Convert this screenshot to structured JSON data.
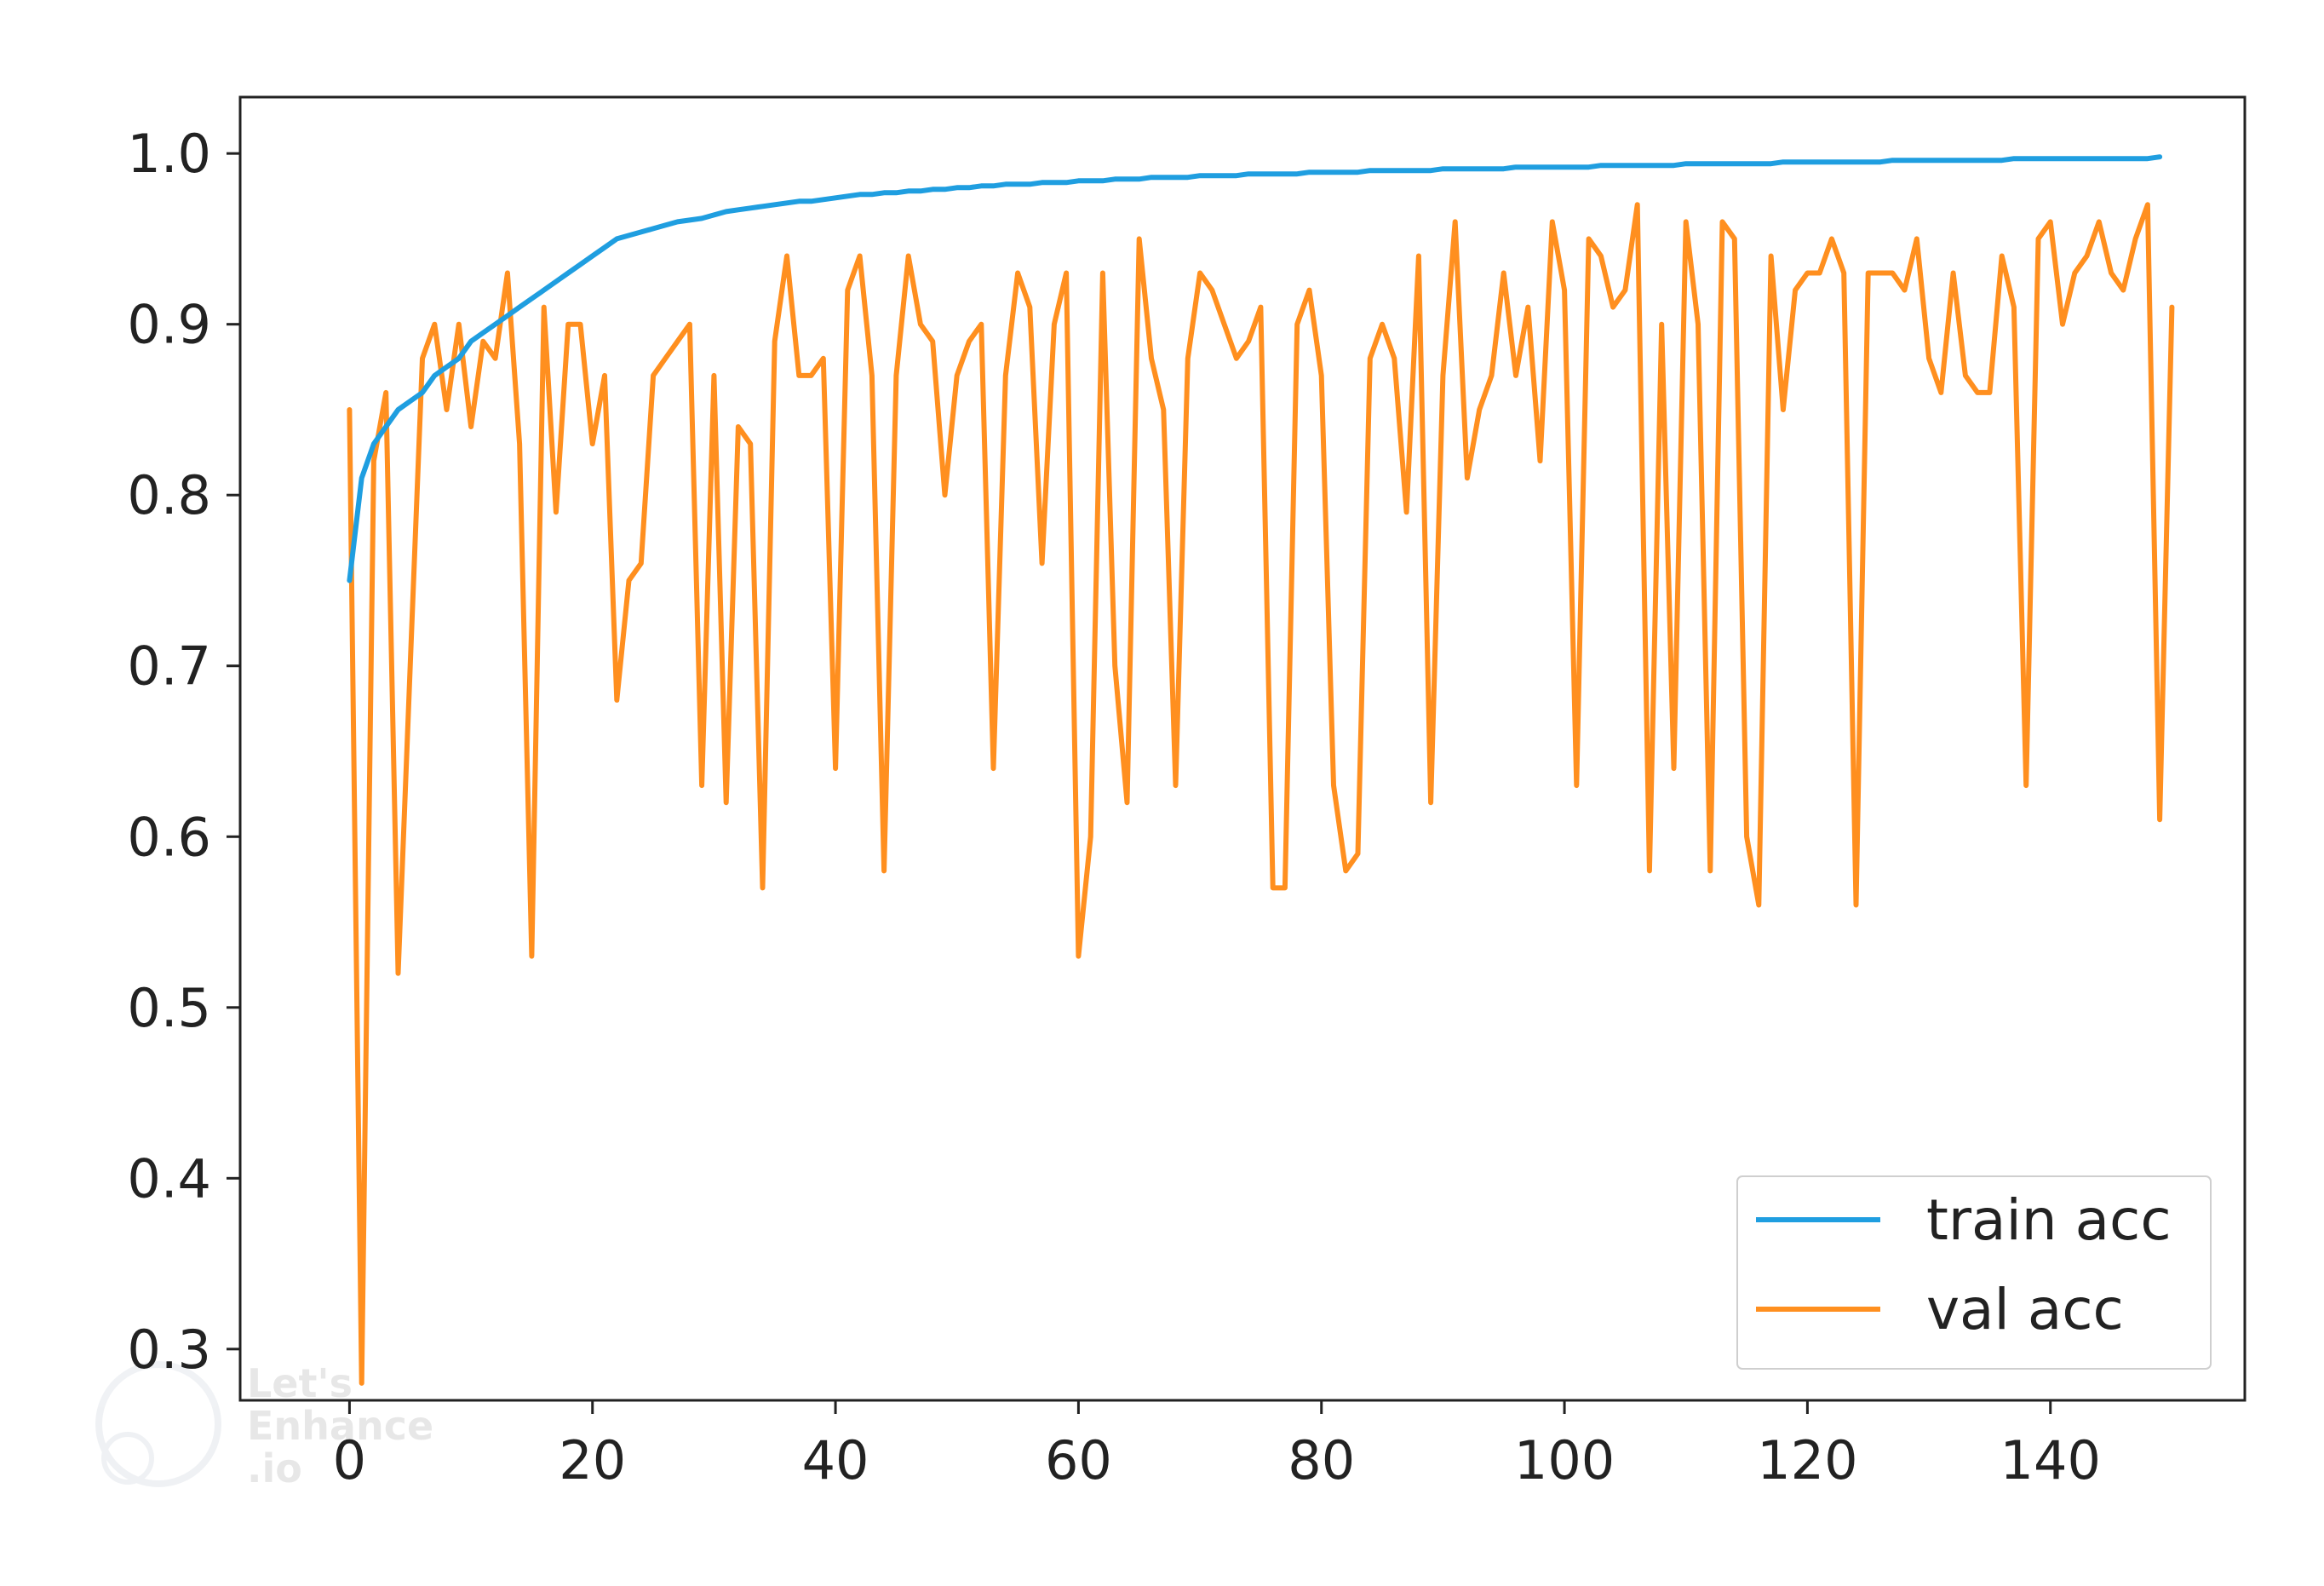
{
  "chart_data": {
    "type": "line",
    "title": "",
    "xlabel": "",
    "ylabel": "",
    "xlim": [
      -9,
      156
    ],
    "ylim": [
      0.27,
      1.033
    ],
    "x_ticks": [
      0,
      20,
      40,
      60,
      80,
      100,
      120,
      140
    ],
    "y_ticks": [
      0.3,
      0.4,
      0.5,
      0.6,
      0.7,
      0.8,
      0.9,
      1.0
    ],
    "grid": false,
    "legend_position": "lower-right",
    "watermark": "Let's Enhance .io",
    "series": [
      {
        "name": "train acc",
        "color": "#1f9ee0",
        "values": [
          0.75,
          0.81,
          0.83,
          0.84,
          0.85,
          0.855,
          0.86,
          0.87,
          0.875,
          0.88,
          0.89,
          0.895,
          0.9,
          0.905,
          0.91,
          0.915,
          0.92,
          0.925,
          0.93,
          0.935,
          0.94,
          0.945,
          0.95,
          0.952,
          0.954,
          0.956,
          0.958,
          0.96,
          0.961,
          0.962,
          0.964,
          0.966,
          0.967,
          0.968,
          0.969,
          0.97,
          0.971,
          0.972,
          0.972,
          0.973,
          0.974,
          0.975,
          0.976,
          0.976,
          0.977,
          0.977,
          0.978,
          0.978,
          0.979,
          0.979,
          0.98,
          0.98,
          0.981,
          0.981,
          0.982,
          0.982,
          0.982,
          0.983,
          0.983,
          0.983,
          0.984,
          0.984,
          0.984,
          0.985,
          0.985,
          0.985,
          0.986,
          0.986,
          0.986,
          0.986,
          0.987,
          0.987,
          0.987,
          0.987,
          0.988,
          0.988,
          0.988,
          0.988,
          0.988,
          0.989,
          0.989,
          0.989,
          0.989,
          0.989,
          0.99,
          0.99,
          0.99,
          0.99,
          0.99,
          0.99,
          0.991,
          0.991,
          0.991,
          0.991,
          0.991,
          0.991,
          0.992,
          0.992,
          0.992,
          0.992,
          0.992,
          0.992,
          0.992,
          0.993,
          0.993,
          0.993,
          0.993,
          0.993,
          0.993,
          0.993,
          0.994,
          0.994,
          0.994,
          0.994,
          0.994,
          0.994,
          0.994,
          0.994,
          0.995,
          0.995,
          0.995,
          0.995,
          0.995,
          0.995,
          0.995,
          0.995,
          0.995,
          0.996,
          0.996,
          0.996,
          0.996,
          0.996,
          0.996,
          0.996,
          0.996,
          0.996,
          0.996,
          0.997,
          0.997,
          0.997,
          0.997,
          0.997,
          0.997,
          0.997,
          0.997,
          0.997,
          0.997,
          0.997,
          0.997,
          0.998
        ]
      },
      {
        "name": "val acc",
        "color": "#ff8f1f",
        "values": [
          0.85,
          0.28,
          0.82,
          0.86,
          0.52,
          0.7,
          0.88,
          0.9,
          0.85,
          0.9,
          0.84,
          0.89,
          0.88,
          0.93,
          0.83,
          0.53,
          0.91,
          0.79,
          0.9,
          0.9,
          0.83,
          0.87,
          0.68,
          0.75,
          0.76,
          0.87,
          0.88,
          0.89,
          0.9,
          0.63,
          0.87,
          0.62,
          0.84,
          0.83,
          0.57,
          0.89,
          0.94,
          0.87,
          0.87,
          0.88,
          0.64,
          0.92,
          0.94,
          0.87,
          0.58,
          0.87,
          0.94,
          0.9,
          0.89,
          0.8,
          0.87,
          0.89,
          0.9,
          0.64,
          0.87,
          0.93,
          0.91,
          0.76,
          0.9,
          0.93,
          0.53,
          0.6,
          0.93,
          0.7,
          0.62,
          0.95,
          0.88,
          0.85,
          0.63,
          0.88,
          0.93,
          0.92,
          0.9,
          0.88,
          0.89,
          0.91,
          0.57,
          0.57,
          0.9,
          0.92,
          0.87,
          0.63,
          0.58,
          0.59,
          0.88,
          0.9,
          0.88,
          0.79,
          0.94,
          0.62,
          0.87,
          0.96,
          0.81,
          0.85,
          0.87,
          0.93,
          0.87,
          0.91,
          0.82,
          0.96,
          0.92,
          0.63,
          0.95,
          0.94,
          0.91,
          0.92,
          0.97,
          0.58,
          0.9,
          0.64,
          0.96,
          0.9,
          0.58,
          0.96,
          0.95,
          0.6,
          0.56,
          0.94,
          0.85,
          0.92,
          0.93,
          0.93,
          0.95,
          0.93,
          0.56,
          0.93,
          0.93,
          0.93,
          0.92,
          0.95,
          0.88,
          0.86,
          0.93,
          0.87,
          0.86,
          0.86,
          0.94,
          0.91,
          0.63,
          0.95,
          0.96,
          0.9,
          0.93,
          0.94,
          0.96,
          0.93,
          0.92,
          0.95,
          0.97,
          0.61,
          0.91
        ]
      }
    ]
  }
}
